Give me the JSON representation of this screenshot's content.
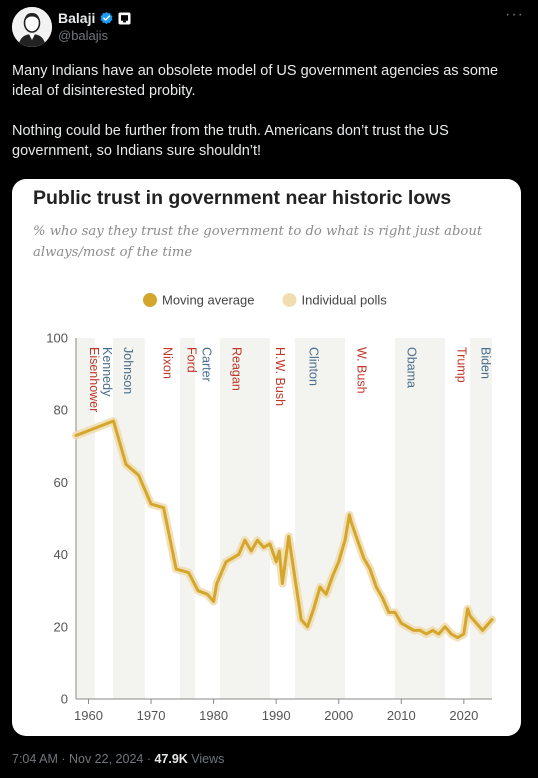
{
  "author": {
    "name": "Balaji",
    "handle": "@balajis",
    "more_label": "···"
  },
  "tweet": {
    "paragraphs": [
      "Many Indians have an obsolete model of US government agencies as some ideal of disinterested probity.",
      "Nothing could be further from the truth. Americans don’t trust the US government, so Indians sure shouldn’t!"
    ]
  },
  "meta": {
    "time": "7:04 AM",
    "sep1": " · ",
    "date": "Nov 22, 2024",
    "sep2": " · ",
    "views": "47.9K",
    "views_label": " Views"
  },
  "colors": {
    "background": "#000000",
    "verified": "#1d9bf0",
    "line": "#d4a72c",
    "band": "#f3ecd0",
    "republican": "#c0392b",
    "democrat": "#4a6d8c"
  },
  "icons": {
    "verified": "verified-badge-icon",
    "affiliate": "affiliate-badge-icon"
  },
  "chart_data": {
    "type": "line",
    "title": "Public trust in government near historic lows",
    "subtitle": "% who say they trust the government to do what is right just about always/most of the time",
    "legend": [
      {
        "name": "Moving average",
        "color": "#d4a72c"
      },
      {
        "name": "Individual polls",
        "color": "#f0ddb0"
      }
    ],
    "legend_placement": "top-center",
    "xlim": [
      1958,
      2024.5
    ],
    "ylim": [
      0,
      100
    ],
    "x_ticks": [
      1960,
      1970,
      1980,
      1990,
      2000,
      2010,
      2020
    ],
    "x_tick_labels": [
      "1960",
      "1970",
      "1980",
      "1990",
      "2000",
      "2010",
      "2020"
    ],
    "y_ticks": [
      0,
      20,
      40,
      60,
      80,
      100
    ],
    "y_tick_labels": [
      "0",
      "20",
      "40",
      "60",
      "80",
      "100"
    ],
    "presidents": [
      {
        "name": "Eisenhower",
        "start": 1958,
        "end": 1961,
        "party": "R"
      },
      {
        "name": "Kennedy",
        "start": 1961,
        "end": 1963.9,
        "party": "D"
      },
      {
        "name": "Johnson",
        "start": 1963.9,
        "end": 1969,
        "party": "D"
      },
      {
        "name": "Nixon",
        "start": 1969,
        "end": 1974.6,
        "party": "R"
      },
      {
        "name": "Ford",
        "start": 1974.6,
        "end": 1977,
        "party": "R"
      },
      {
        "name": "Carter",
        "start": 1977,
        "end": 1981,
        "party": "D"
      },
      {
        "name": "Reagan",
        "start": 1981,
        "end": 1989,
        "party": "R"
      },
      {
        "name": "H.W. Bush",
        "start": 1989,
        "end": 1993,
        "party": "R"
      },
      {
        "name": "Clinton",
        "start": 1993,
        "end": 2001,
        "party": "D"
      },
      {
        "name": "W. Bush",
        "start": 2001,
        "end": 2009,
        "party": "R"
      },
      {
        "name": "Obama",
        "start": 2009,
        "end": 2017,
        "party": "D"
      },
      {
        "name": "Trump",
        "start": 2017,
        "end": 2021,
        "party": "R"
      },
      {
        "name": "Biden",
        "start": 2021,
        "end": 2024.5,
        "party": "D"
      }
    ],
    "series": [
      {
        "name": "Moving average",
        "x": [
          1958,
          1964,
          1966,
          1968,
          1970,
          1972,
          1974,
          1976,
          1977.5,
          1979,
          1980,
          1980.5,
          1982,
          1984,
          1985,
          1986,
          1987,
          1988,
          1989,
          1990,
          1990.5,
          1991,
          1992,
          1994,
          1995,
          1996,
          1997,
          1998,
          1999,
          2000,
          2001,
          2001.7,
          2002,
          2003,
          2004,
          2005,
          2006,
          2007,
          2008,
          2009,
          2010,
          2011,
          2012,
          2013,
          2014,
          2015,
          2016,
          2017,
          2018,
          2019,
          2020,
          2020.6,
          2021,
          2022,
          2023,
          2024.5
        ],
        "y": [
          73,
          77,
          65,
          62,
          54,
          53,
          36,
          35,
          30,
          29,
          27,
          32,
          38,
          40,
          44,
          41,
          44,
          42,
          43,
          38,
          41,
          32,
          45,
          22,
          20,
          25,
          31,
          29,
          34,
          38,
          44,
          51,
          49,
          44,
          39,
          36,
          31,
          28,
          24,
          24,
          21,
          20,
          19,
          19,
          18,
          19,
          18,
          20,
          18,
          17,
          18,
          25,
          23,
          21,
          19,
          22
        ]
      }
    ]
  }
}
